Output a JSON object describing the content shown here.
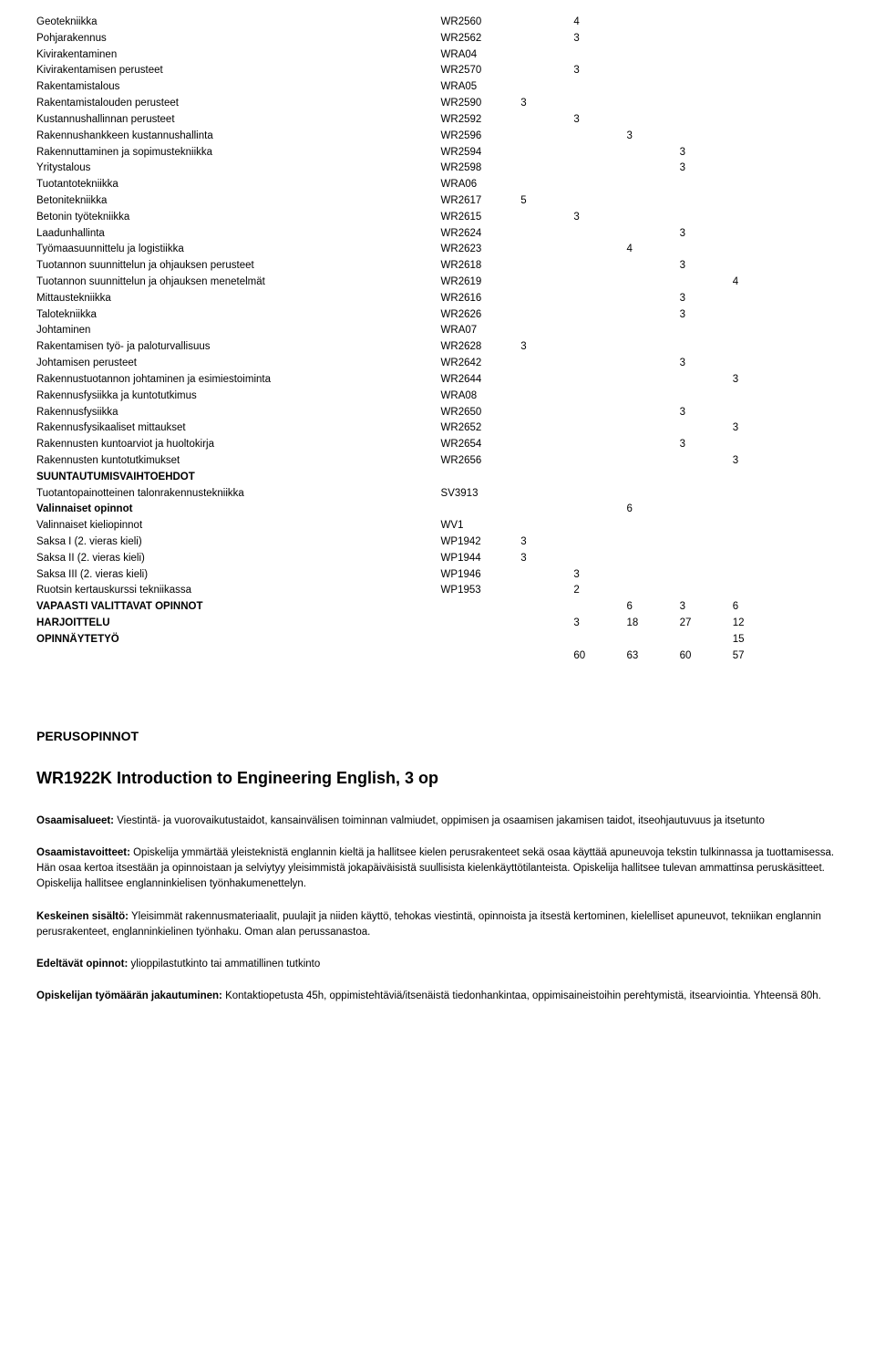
{
  "table": {
    "rows": [
      {
        "name": "Geotekniikka",
        "code": "WR2560",
        "cols": [
          "",
          "4",
          "",
          "",
          "",
          ""
        ]
      },
      {
        "name": "Pohjarakennus",
        "code": "WR2562",
        "cols": [
          "",
          "3",
          "",
          "",
          "",
          ""
        ]
      },
      {
        "name": "Kivirakentaminen",
        "code": "WRA04",
        "cols": [
          "",
          "",
          "",
          "",
          "",
          ""
        ]
      },
      {
        "name": "Kivirakentamisen perusteet",
        "code": "WR2570",
        "cols": [
          "",
          "3",
          "",
          "",
          "",
          ""
        ]
      },
      {
        "name": "Rakentamistalous",
        "code": "WRA05",
        "cols": [
          "",
          "",
          "",
          "",
          "",
          ""
        ]
      },
      {
        "name": "Rakentamistalouden perusteet",
        "code": "WR2590",
        "cols": [
          "3",
          "",
          "",
          "",
          "",
          ""
        ]
      },
      {
        "name": "Kustannushallinnan perusteet",
        "code": "WR2592",
        "cols": [
          "",
          "3",
          "",
          "",
          "",
          ""
        ]
      },
      {
        "name": "Rakennushankkeen kustannushallinta",
        "code": "WR2596",
        "cols": [
          "",
          "",
          "3",
          "",
          "",
          ""
        ]
      },
      {
        "name": "Rakennuttaminen ja sopimustekniikka",
        "code": "WR2594",
        "cols": [
          "",
          "",
          "",
          "3",
          "",
          ""
        ]
      },
      {
        "name": "Yritystalous",
        "code": "WR2598",
        "cols": [
          "",
          "",
          "",
          "3",
          "",
          ""
        ]
      },
      {
        "name": "Tuotantotekniikka",
        "code": "WRA06",
        "cols": [
          "",
          "",
          "",
          "",
          "",
          ""
        ]
      },
      {
        "name": "Betonitekniikka",
        "code": "WR2617",
        "cols": [
          "5",
          "",
          "",
          "",
          "",
          ""
        ]
      },
      {
        "name": "Betonin työtekniikka",
        "code": "WR2615",
        "cols": [
          "",
          "3",
          "",
          "",
          "",
          ""
        ]
      },
      {
        "name": "Laadunhallinta",
        "code": "WR2624",
        "cols": [
          "",
          "",
          "",
          "3",
          "",
          ""
        ]
      },
      {
        "name": "Työmaasuunnittelu ja logistiikka",
        "code": "WR2623",
        "cols": [
          "",
          "",
          "4",
          "",
          "",
          ""
        ]
      },
      {
        "name": "Tuotannon suunnittelun ja ohjauksen perusteet",
        "code": "WR2618",
        "cols": [
          "",
          "",
          "",
          "3",
          "",
          ""
        ]
      },
      {
        "name": "Tuotannon suunnittelun ja ohjauksen menetelmät",
        "code": "WR2619",
        "cols": [
          "",
          "",
          "",
          "",
          "4",
          ""
        ]
      },
      {
        "name": "Mittaustekniikka",
        "code": "WR2616",
        "cols": [
          "",
          "",
          "",
          "3",
          "",
          ""
        ]
      },
      {
        "name": "Talotekniikka",
        "code": "WR2626",
        "cols": [
          "",
          "",
          "",
          "3",
          "",
          ""
        ]
      },
      {
        "name": "Johtaminen",
        "code": "WRA07",
        "cols": [
          "",
          "",
          "",
          "",
          "",
          ""
        ]
      },
      {
        "name": "Rakentamisen työ- ja paloturvallisuus",
        "code": "WR2628",
        "cols": [
          "3",
          "",
          "",
          "",
          "",
          ""
        ]
      },
      {
        "name": "Johtamisen perusteet",
        "code": "WR2642",
        "cols": [
          "",
          "",
          "",
          "3",
          "",
          ""
        ]
      },
      {
        "name": "Rakennustuotannon johtaminen ja esimiestoiminta",
        "code": "WR2644",
        "cols": [
          "",
          "",
          "",
          "",
          "3",
          ""
        ]
      },
      {
        "name": "Rakennusfysiikka ja kuntotutkimus",
        "code": "WRA08",
        "cols": [
          "",
          "",
          "",
          "",
          "",
          ""
        ]
      },
      {
        "name": "Rakennusfysiikka",
        "code": "WR2650",
        "cols": [
          "",
          "",
          "",
          "3",
          "",
          ""
        ]
      },
      {
        "name": "Rakennusfysikaaliset mittaukset",
        "code": "WR2652",
        "cols": [
          "",
          "",
          "",
          "",
          "3",
          ""
        ]
      },
      {
        "name": "Rakennusten kuntoarviot ja huoltokirja",
        "code": "WR2654",
        "cols": [
          "",
          "",
          "",
          "3",
          "",
          ""
        ]
      },
      {
        "name": "Rakennusten kuntotutkimukset",
        "code": "WR2656",
        "cols": [
          "",
          "",
          "",
          "",
          "3",
          ""
        ]
      },
      {
        "name": "SUUNTAUTUMISVAIHTOEHDOT",
        "bold": true,
        "code": "",
        "cols": [
          "",
          "",
          "",
          "",
          "",
          ""
        ]
      },
      {
        "name": "Tuotantopainotteinen talonrakennustekniikka",
        "code": "SV3913",
        "cols": [
          "",
          "",
          "",
          "",
          "",
          ""
        ]
      },
      {
        "name": "Valinnaiset opinnot",
        "bold": true,
        "code": "",
        "cols": [
          "",
          "",
          "6",
          "",
          "",
          ""
        ]
      },
      {
        "name": "Valinnaiset kieliopinnot",
        "code": "WV1",
        "cols": [
          "",
          "",
          "",
          "",
          "",
          ""
        ]
      },
      {
        "name": "Saksa I (2. vieras kieli)",
        "code": "WP1942",
        "cols": [
          "3",
          "",
          "",
          "",
          "",
          ""
        ]
      },
      {
        "name": "Saksa II (2. vieras kieli)",
        "code": "WP1944",
        "cols": [
          "3",
          "",
          "",
          "",
          "",
          ""
        ]
      },
      {
        "name": "Saksa III (2. vieras kieli)",
        "code": "WP1946",
        "cols": [
          "",
          "3",
          "",
          "",
          "",
          ""
        ]
      },
      {
        "name": "Ruotsin kertauskurssi tekniikassa",
        "code": "WP1953",
        "cols": [
          "",
          "2",
          "",
          "",
          "",
          ""
        ]
      },
      {
        "name": "VAPAASTI VALITTAVAT OPINNOT",
        "bold": true,
        "code": "",
        "cols": [
          "",
          "",
          "6",
          "3",
          "6",
          ""
        ]
      },
      {
        "name": "HARJOITTELU",
        "bold": true,
        "code": "",
        "cols": [
          "",
          "3",
          "18",
          "27",
          "12",
          ""
        ]
      },
      {
        "name": "OPINNÄYTETYÖ",
        "bold": true,
        "code": "",
        "cols": [
          "",
          "",
          "",
          "",
          "15",
          ""
        ]
      },
      {
        "name": "",
        "code": "",
        "cols": [
          "",
          "60",
          "63",
          "60",
          "57",
          ""
        ]
      }
    ]
  },
  "sectionHeading": "PERUSOPINNOT",
  "courseTitle": "WR1922K Introduction to Engineering English, 3 op",
  "p1_label": "Osaamisalueet:",
  "p1_text": " Viestintä- ja vuorovaikutustaidot, kansainvälisen toiminnan valmiudet, oppimisen ja osaamisen jakamisen taidot, itseohjautuvuus ja itsetunto",
  "p2_label": "Osaamistavoitteet:",
  "p2_text": " Opiskelija ymmärtää yleisteknistä englannin kieltä ja hallitsee kielen perusrakenteet sekä osaa käyttää apuneuvoja tekstin tulkinnassa ja tuottamisessa. Hän osaa kertoa itsestään ja opinnoistaan ja selviytyy yleisimmistä jokapäiväisistä suullisista kielenkäyttötilanteista. Opiskelija hallitsee tulevan ammattinsa peruskäsitteet. Opiskelija hallitsee englanninkielisen työnhakumenettelyn.",
  "p3_label": "Keskeinen sisältö:",
  "p3_text": " Yleisimmät rakennusmateriaalit, puulajit ja niiden käyttö, tehokas viestintä, opinnoista ja itsestä kertominen, kielelliset apuneuvot, tekniikan englannin perusrakenteet, englanninkielinen työnhaku. Oman alan perussanastoa.",
  "p4_label": "Edeltävät opinnot:",
  "p4_text": " ylioppilastutkinto tai ammatillinen tutkinto",
  "p5_label": "Opiskelijan työmäärän jakautuminen:",
  "p5_text": " Kontaktiopetusta 45h, oppimistehtäviä/itsenäistä tiedonhankintaa, oppimisaineistoihin perehtymistä, itsearviointia. Yhteensä 80h."
}
